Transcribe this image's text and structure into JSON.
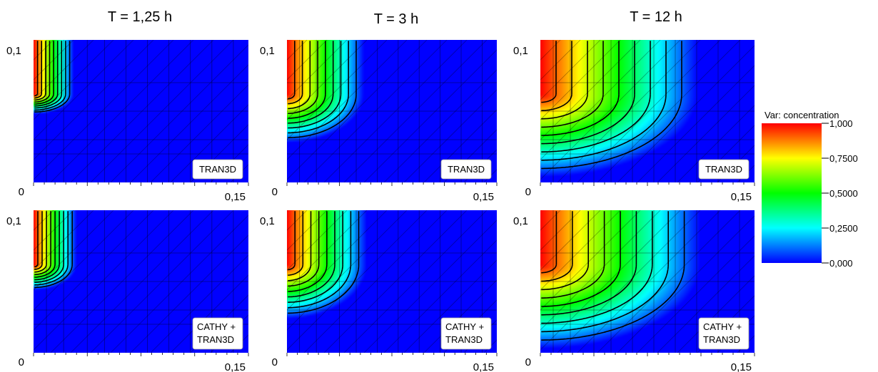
{
  "columns": [
    {
      "title": "T = 1,25 h"
    },
    {
      "title": "T = 3 h"
    },
    {
      "title": "T = 12 h"
    }
  ],
  "axis_labels": {
    "y_max": "0,1",
    "origin": "0",
    "x_max": "0,15"
  },
  "rows": [
    {
      "label": "TRAN3D"
    },
    {
      "label_line1": "CATHY +",
      "label_line2": "TRAN3D"
    }
  ],
  "legend": {
    "title": "Var: concentration",
    "ticks": [
      "1,000",
      "0,7500",
      "0,5000",
      "0,2500",
      "0,000"
    ]
  },
  "chart_data": {
    "type": "heatmap",
    "variable": "concentration",
    "color_range": [
      0,
      1
    ],
    "x_range": [
      0,
      0.15
    ],
    "y_range": [
      0,
      0.1
    ],
    "colormap": [
      "#0000ff",
      "#00ffff",
      "#00ff00",
      "#ffff00",
      "#ff0000"
    ],
    "contour_levels": [
      0.1,
      0.2,
      0.3,
      0.4,
      0.5,
      0.6,
      0.7,
      0.8,
      0.9
    ],
    "panels": [
      {
        "time": "T = 1,25 h",
        "model": "TRAN3D",
        "front_x": 0.028,
        "front_y_lo": 0.048
      },
      {
        "time": "T = 3 h",
        "model": "TRAN3D",
        "front_x": 0.055,
        "front_y_lo": 0.028
      },
      {
        "time": "T = 12 h",
        "model": "TRAN3D",
        "front_x": 0.11,
        "front_y_lo": 0.004
      },
      {
        "time": "T = 1,25 h",
        "model": "CATHY + TRAN3D",
        "front_x": 0.03,
        "front_y_lo": 0.044
      },
      {
        "time": "T = 3 h",
        "model": "CATHY + TRAN3D",
        "front_x": 0.057,
        "front_y_lo": 0.024
      },
      {
        "time": "T = 12 h",
        "model": "CATHY + TRAN3D",
        "front_x": 0.112,
        "front_y_lo": 0.003
      }
    ]
  }
}
